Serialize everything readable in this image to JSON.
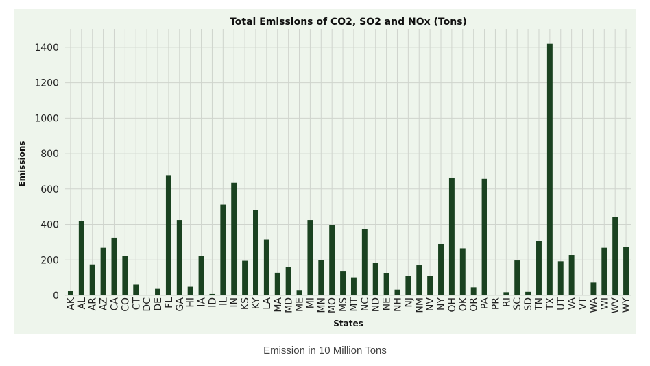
{
  "caption": "Emission in 10 Million Tons",
  "colors": {
    "bar": "#1a4220",
    "figure_background": "#eef5ec",
    "grid": "#cfd4cd"
  },
  "chart_data": {
    "type": "bar",
    "title": "Total Emissions of CO2, SO2 and NOx (Tons)",
    "xlabel": "States",
    "ylabel": "Emissions",
    "ylim": [
      0,
      1500
    ],
    "yticks": [
      0,
      200,
      400,
      600,
      800,
      1000,
      1200,
      1400
    ],
    "grid": true,
    "categories": [
      "AK",
      "AL",
      "AR",
      "AZ",
      "CA",
      "CO",
      "CT",
      "DC",
      "DE",
      "FL",
      "GA",
      "HI",
      "IA",
      "ID",
      "IL",
      "IN",
      "KS",
      "KY",
      "LA",
      "MA",
      "MD",
      "ME",
      "MI",
      "MN",
      "MO",
      "MS",
      "MT",
      "NC",
      "ND",
      "NE",
      "NH",
      "NJ",
      "NM",
      "NV",
      "NY",
      "OH",
      "OK",
      "OR",
      "PA",
      "PR",
      "RI",
      "SC",
      "SD",
      "TN",
      "TX",
      "UT",
      "VA",
      "VT",
      "WA",
      "WI",
      "WV",
      "WY"
    ],
    "values": [
      25,
      418,
      175,
      268,
      325,
      222,
      60,
      0,
      40,
      675,
      425,
      48,
      222,
      8,
      512,
      635,
      195,
      482,
      315,
      128,
      160,
      30,
      425,
      200,
      398,
      135,
      102,
      375,
      183,
      125,
      32,
      112,
      170,
      110,
      290,
      665,
      265,
      45,
      658,
      0,
      18,
      197,
      20,
      308,
      1420,
      192,
      228,
      0,
      72,
      268,
      443,
      273
    ]
  }
}
